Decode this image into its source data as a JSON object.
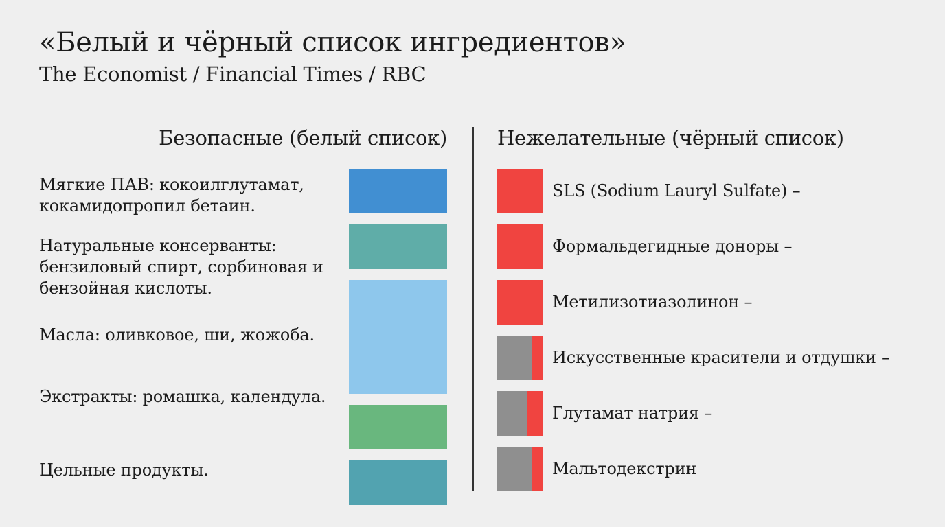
{
  "header": {
    "title": "«Белый и чёрный список ингредиентов»",
    "subtitle": "The Economist / Financial Times / RBC"
  },
  "chart_data": {
    "type": "table",
    "columns": [
      "Безопасные (белый список)",
      "Нежелательные (чёрный список)"
    ],
    "whitelist": [
      {
        "label": "Мягкие ПАВ: кокоилглутамат, кокамидопропил бетаин.",
        "color": "#418fd2",
        "size": 1
      },
      {
        "label": "Натуральные консерванты: бензиловый спирт, сорбиновая и бензойная кислоты.",
        "color": "#5fada8",
        "size": 1
      },
      {
        "label": "Масла: оливковое, ши, жожоба.",
        "color": "#8ec7ec",
        "size": 2.25
      },
      {
        "label": "Экстракты: ромашка, календула.",
        "color": "#69b77e",
        "size": 1
      },
      {
        "label": "Цельные продукты.",
        "color": "#52a3b0",
        "size": 1
      }
    ],
    "blacklist": [
      {
        "label": "SLS (Sodium Lauryl Sulfate) –",
        "gray_fraction": 0
      },
      {
        "label": "Формальдегидные доноры –",
        "gray_fraction": 0
      },
      {
        "label": "Метилизотиазолинон –",
        "gray_fraction": 0
      },
      {
        "label": "Искусственные красители и отдушки –",
        "gray_fraction": 0.77
      },
      {
        "label": "Глутамат натрия –",
        "gray_fraction": 0.67
      },
      {
        "label": "Мальтодекстрин",
        "gray_fraction": 0.77
      }
    ],
    "colors": {
      "black_marker": "#f04440",
      "gray_marker": "#8f8f8f"
    }
  }
}
